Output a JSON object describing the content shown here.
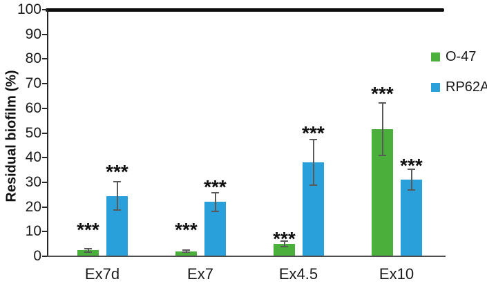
{
  "chart_data": {
    "type": "bar",
    "title": "",
    "xlabel": "",
    "ylabel": "Residual biofilm (%)",
    "ylim": [
      0,
      100
    ],
    "yticks": [
      0,
      10,
      20,
      30,
      40,
      50,
      60,
      70,
      80,
      90,
      100
    ],
    "grid": false,
    "legend_position": "right",
    "top_reference_line_at": 100,
    "categories": [
      "Ex7d",
      "Ex7",
      "Ex4.5",
      "Ex10"
    ],
    "series": [
      {
        "name": "O-47",
        "color": "#4BAF3C",
        "values": [
          2.5,
          2,
          5,
          51.5
        ],
        "errors": [
          1,
          0.7,
          1.5,
          11
        ]
      },
      {
        "name": "RP62A",
        "color": "#29A0D9",
        "values": [
          24.5,
          22,
          38,
          31
        ],
        "errors": [
          6,
          4,
          9.5,
          4.5
        ]
      }
    ],
    "error_bar_color": "#595959",
    "significance": [
      {
        "category_index": 0,
        "series_index": 0,
        "text": "***",
        "y": 11.8
      },
      {
        "category_index": 0,
        "series_index": 1,
        "text": "***",
        "y": 35.3
      },
      {
        "category_index": 1,
        "series_index": 0,
        "text": "***",
        "y": 11.9
      },
      {
        "category_index": 1,
        "series_index": 1,
        "text": "***",
        "y": 29.1
      },
      {
        "category_index": 2,
        "series_index": 0,
        "text": "***",
        "y": 8.1
      },
      {
        "category_index": 2,
        "series_index": 1,
        "text": "***",
        "y": 51.0
      },
      {
        "category_index": 3,
        "series_index": 0,
        "text": "***",
        "y": 66.9
      },
      {
        "category_index": 3,
        "series_index": 1,
        "text": "***",
        "y": 37.8
      }
    ]
  }
}
